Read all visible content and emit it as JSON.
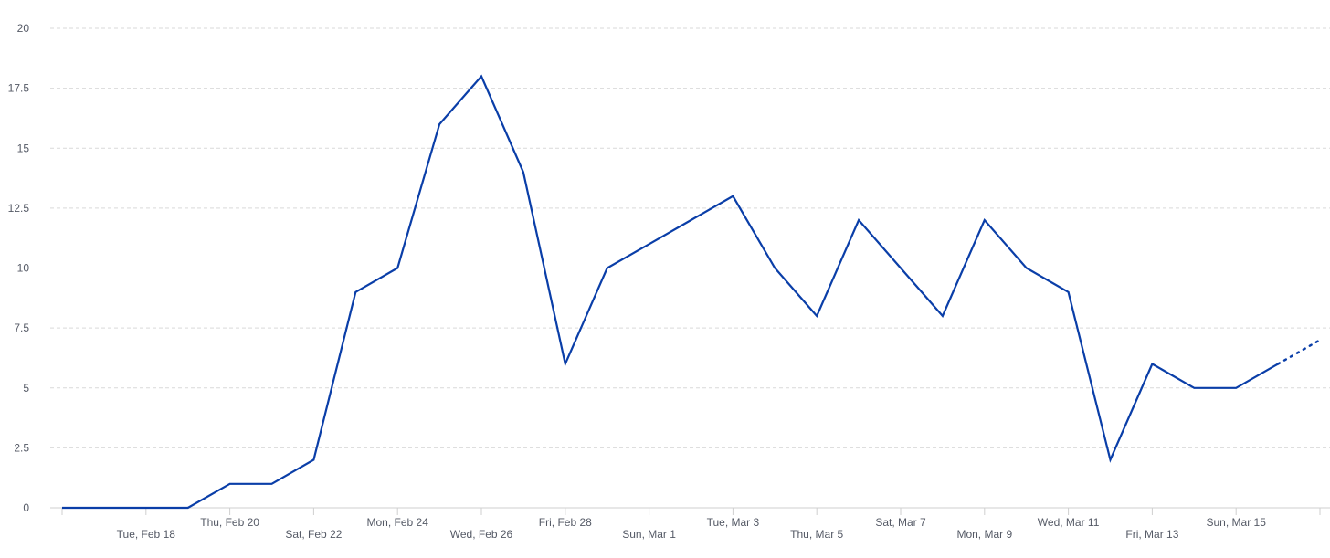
{
  "chart_data": {
    "type": "line",
    "title": "",
    "xlabel": "",
    "ylabel": "",
    "ylim": [
      0,
      20
    ],
    "yticks": [
      "0",
      "2.5",
      "5",
      "7.5",
      "10",
      "12.5",
      "15",
      "17.5",
      "20"
    ],
    "grid": true,
    "x": [
      "Feb 16",
      "Feb 17",
      "Feb 18",
      "Feb 19",
      "Feb 20",
      "Feb 21",
      "Feb 22",
      "Feb 23",
      "Feb 24",
      "Feb 25",
      "Feb 26",
      "Feb 27",
      "Feb 28",
      "Feb 29",
      "Mar 1",
      "Mar 2",
      "Mar 3",
      "Mar 4",
      "Mar 5",
      "Mar 6",
      "Mar 7",
      "Mar 8",
      "Mar 9",
      "Mar 10",
      "Mar 11",
      "Mar 12",
      "Mar 13",
      "Mar 14",
      "Mar 15",
      "Mar 16",
      "Mar 17"
    ],
    "x_tick_labels": [
      "Tue, Feb 18",
      "Thu, Feb 20",
      "Sat, Feb 22",
      "Mon, Feb 24",
      "Wed, Feb 26",
      "Fri, Feb 28",
      "Sun, Mar 1",
      "Tue, Mar 3",
      "Thu, Mar 5",
      "Sat, Mar 7",
      "Mon, Mar 9",
      "Wed, Mar 11",
      "Fri, Mar 13",
      "Sun, Mar 15"
    ],
    "series": [
      {
        "values": [
          0,
          0,
          0,
          0,
          1,
          1,
          2,
          9,
          10,
          16,
          18,
          14,
          6,
          10,
          11,
          12,
          13,
          10,
          8,
          12,
          10,
          8,
          12,
          10,
          9,
          2,
          6,
          5,
          5,
          6,
          7
        ],
        "color": "#0a3ea8",
        "incomplete_last_point": true
      }
    ]
  }
}
